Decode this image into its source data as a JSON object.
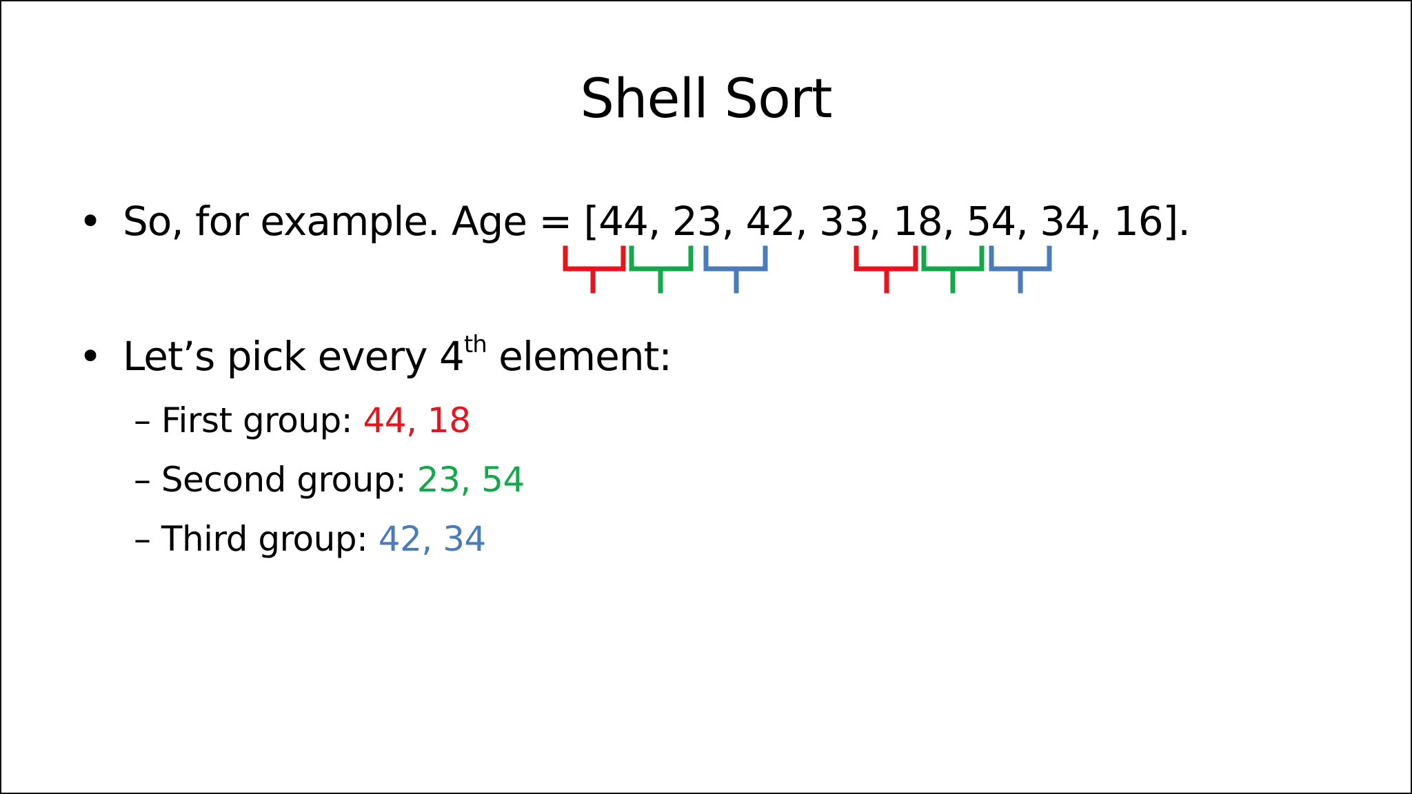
{
  "slide": {
    "title": "Shell Sort",
    "bullets": [
      {
        "marker": "•",
        "prefix": "So, for example. Age = [44, 23, 42, 33, 18, 54, 34, 16]."
      },
      {
        "marker": "•",
        "text_before": "Let’s pick every 4",
        "superscript": "th",
        "text_after": " element:"
      }
    ],
    "groups": [
      {
        "dash": "– ",
        "label": "First group: ",
        "values": "44, 18",
        "color": "#e8141c"
      },
      {
        "dash": "– ",
        "label": "Second group: ",
        "values": "23, 54",
        "color": "#13a84a"
      },
      {
        "dash": "– ",
        "label": "Third group: ",
        "values": "42, 34",
        "color": "#4a7bbd"
      }
    ],
    "brace_colors": [
      "#e8141c",
      "#13a84a",
      "#4a7bbd"
    ]
  }
}
